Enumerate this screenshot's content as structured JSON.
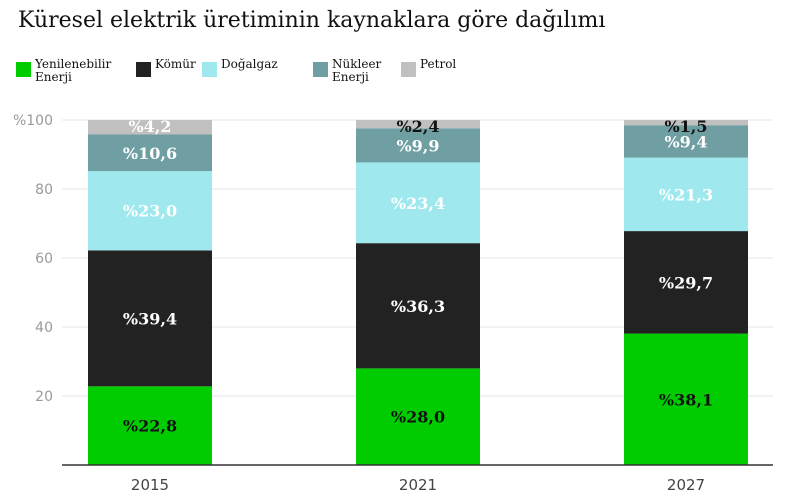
{
  "chart_data": {
    "type": "bar",
    "stacked": true,
    "title": "Küresel elektrik üretiminin kaynaklara göre dağılımı",
    "categories": [
      "2015",
      "2021",
      "2027"
    ],
    "ylim": [
      0,
      100
    ],
    "yticks": [
      0,
      20,
      40,
      60,
      80,
      100
    ],
    "ytick_labels": [
      "",
      "20",
      "40",
      "60",
      "80",
      "%100"
    ],
    "grid": true,
    "legend_position": "top-left",
    "series": [
      {
        "name": "Yenilenebilir Enerji",
        "values": [
          22.8,
          28.0,
          38.1
        ],
        "labels": [
          "%22,8",
          "%28,0",
          "%38,1"
        ],
        "color": "#00cc00",
        "label_color": "#111111"
      },
      {
        "name": "Kömür",
        "values": [
          39.4,
          36.3,
          29.7
        ],
        "labels": [
          "%39,4",
          "%36,3",
          "%29,7"
        ],
        "color": "#222222",
        "label_color": "#ffffff"
      },
      {
        "name": "Doğalgaz",
        "values": [
          23.0,
          23.4,
          21.3
        ],
        "labels": [
          "%23,0",
          "%23,4",
          "%21,3"
        ],
        "color": "#9ee8ee",
        "label_color": "#ffffff"
      },
      {
        "name": "Nükleer Enerji",
        "values": [
          10.6,
          9.9,
          9.4
        ],
        "labels": [
          "%10,6",
          "%9,9",
          "%9,4"
        ],
        "color": "#6f9fa2",
        "label_color": "#ffffff"
      },
      {
        "name": "Petrol",
        "values": [
          4.2,
          2.4,
          1.5
        ],
        "labels": [
          "%4,2",
          "%2,4",
          "%1,5"
        ],
        "color": "#c0c0c0",
        "label_color": "#ffffff"
      }
    ],
    "top_label_color": "#111111"
  }
}
